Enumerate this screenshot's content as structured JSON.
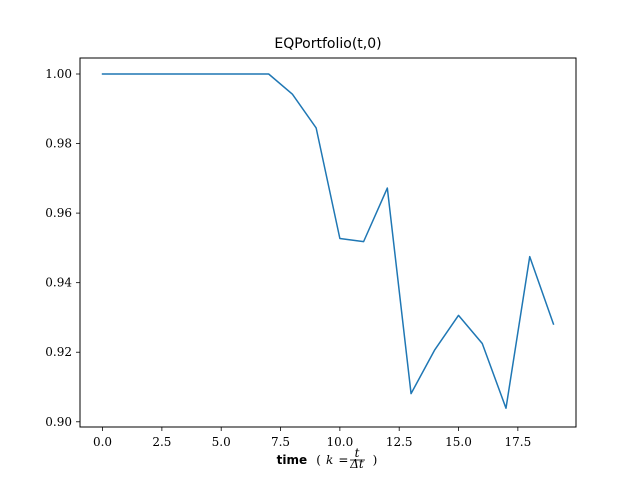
{
  "chart_data": {
    "type": "line",
    "title": "EQPortfolio(t,0)",
    "xlabel": {
      "bold": "time",
      "math_prefix": "(",
      "math_var": "k",
      "math_eq": " = ",
      "frac_num": "t",
      "frac_den": "Δt",
      "math_suffix": ")"
    },
    "ylabel": "",
    "x": [
      0,
      1,
      2,
      3,
      4,
      5,
      6,
      7,
      8,
      9,
      10,
      11,
      12,
      13,
      14,
      15,
      16,
      17,
      18,
      19
    ],
    "series": [
      {
        "values": [
          1.0,
          1.0,
          1.0,
          1.0,
          1.0,
          1.0,
          1.0,
          1.0,
          0.9942,
          0.9845,
          0.9527,
          0.9518,
          0.9672,
          0.9081,
          0.9207,
          0.9306,
          0.9225,
          0.9039,
          0.9475,
          0.9281
        ],
        "color": "#1f77b4"
      }
    ],
    "xlim": [
      -0.95,
      19.95
    ],
    "ylim": [
      0.8985,
      1.0046
    ],
    "xticks": [
      0.0,
      2.5,
      5.0,
      7.5,
      10.0,
      12.5,
      15.0,
      17.5
    ],
    "xtick_labels": [
      "0.0",
      "2.5",
      "5.0",
      "7.5",
      "10.0",
      "12.5",
      "15.0",
      "17.5"
    ],
    "yticks": [
      0.9,
      0.92,
      0.94,
      0.96,
      0.98,
      1.0
    ],
    "ytick_labels": [
      "0.90",
      "0.92",
      "0.94",
      "0.96",
      "0.98",
      "1.00"
    ],
    "grid": false,
    "legend": "none"
  }
}
